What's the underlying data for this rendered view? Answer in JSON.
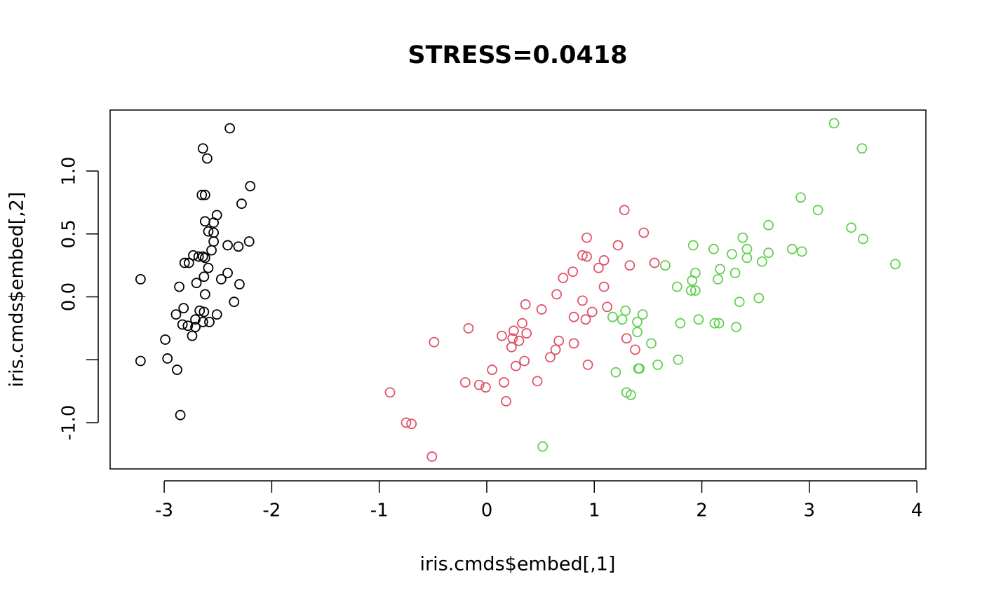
{
  "chart_data": {
    "type": "scatter",
    "title": "STRESS=0.0418",
    "xlabel": "iris.cmds$embed[,1]",
    "ylabel": "iris.cmds$embed[,2]",
    "xlim": [
      -3.503,
      4.084
    ],
    "ylim": [
      -1.368,
      1.485
    ],
    "xticks": [
      -3,
      -2,
      -1,
      0,
      1,
      2,
      3,
      4
    ],
    "yticks": [
      {
        "value": -1.0,
        "label": "-1.0"
      },
      {
        "value": -0.5,
        "label": null
      },
      {
        "value": 0.0,
        "label": "0.0"
      },
      {
        "value": 0.5,
        "label": "0.5"
      },
      {
        "value": 1.0,
        "label": "1.0"
      }
    ],
    "grid": false,
    "series": [
      {
        "color": "#000000",
        "x": [
          -2.39,
          -2.64,
          -2.6,
          -2.2,
          -2.65,
          -2.62,
          -2.28,
          -2.51,
          -2.62,
          -2.54,
          -2.59,
          -2.54,
          -2.54,
          -2.21,
          -2.41,
          -2.31,
          -2.56,
          -2.73,
          -2.68,
          -2.64,
          -2.62,
          -2.81,
          -2.77,
          -2.59,
          -2.41,
          -2.63,
          -3.22,
          -2.47,
          -2.7,
          -2.3,
          -2.86,
          -2.62,
          -2.35,
          -2.82,
          -2.67,
          -2.63,
          -2.89,
          -2.51,
          -2.71,
          -2.64,
          -2.58,
          -2.83,
          -2.78,
          -2.71,
          -2.74,
          -2.99,
          -2.97,
          -3.22,
          -2.88,
          -2.85
        ],
        "y": [
          1.34,
          1.18,
          1.1,
          0.88,
          0.81,
          0.81,
          0.74,
          0.65,
          0.6,
          0.59,
          0.52,
          0.51,
          0.44,
          0.44,
          0.41,
          0.4,
          0.37,
          0.33,
          0.32,
          0.32,
          0.31,
          0.27,
          0.27,
          0.23,
          0.19,
          0.16,
          0.14,
          0.14,
          0.11,
          0.1,
          0.08,
          0.02,
          -0.04,
          -0.09,
          -0.11,
          -0.12,
          -0.14,
          -0.14,
          -0.18,
          -0.2,
          -0.2,
          -0.22,
          -0.23,
          -0.24,
          -0.31,
          -0.34,
          -0.49,
          -0.51,
          -0.58,
          -0.94
        ]
      },
      {
        "color": "#DF536B",
        "x": [
          1.28,
          1.46,
          0.93,
          1.22,
          0.89,
          0.93,
          1.09,
          1.56,
          1.33,
          1.04,
          0.8,
          0.71,
          1.09,
          0.65,
          0.89,
          0.36,
          1.12,
          0.51,
          0.98,
          0.81,
          0.92,
          0.33,
          -0.17,
          0.25,
          0.37,
          0.14,
          0.24,
          0.3,
          0.67,
          -0.49,
          0.81,
          0.23,
          1.3,
          1.38,
          0.64,
          0.59,
          0.35,
          0.94,
          0.27,
          0.05,
          0.47,
          -0.2,
          0.16,
          -0.07,
          -0.01,
          -0.9,
          0.18,
          -0.75,
          -0.7,
          -0.51
        ],
        "y": [
          0.69,
          0.51,
          0.47,
          0.41,
          0.33,
          0.32,
          0.29,
          0.27,
          0.25,
          0.23,
          0.2,
          0.15,
          0.08,
          0.02,
          -0.03,
          -0.06,
          -0.08,
          -0.1,
          -0.12,
          -0.16,
          -0.18,
          -0.21,
          -0.25,
          -0.27,
          -0.29,
          -0.31,
          -0.33,
          -0.35,
          -0.35,
          -0.36,
          -0.37,
          -0.4,
          -0.33,
          -0.42,
          -0.42,
          -0.48,
          -0.51,
          -0.54,
          -0.55,
          -0.58,
          -0.67,
          -0.68,
          -0.68,
          -0.7,
          -0.72,
          -0.76,
          -0.83,
          -1.0,
          -1.01,
          -1.27
        ]
      },
      {
        "color": "#61D04F",
        "x": [
          3.23,
          3.49,
          2.92,
          3.08,
          2.62,
          3.39,
          2.38,
          3.5,
          1.92,
          2.11,
          2.42,
          2.84,
          2.93,
          2.28,
          2.62,
          2.42,
          2.56,
          3.8,
          1.66,
          2.17,
          1.94,
          2.31,
          2.15,
          1.91,
          1.77,
          1.9,
          1.94,
          2.53,
          2.35,
          1.29,
          1.45,
          1.17,
          1.26,
          1.97,
          1.4,
          2.12,
          2.16,
          1.8,
          2.32,
          1.4,
          1.53,
          1.78,
          1.59,
          1.41,
          1.42,
          1.2,
          1.3,
          1.34,
          0.52
        ],
        "y": [
          1.38,
          1.18,
          0.79,
          0.69,
          0.57,
          0.55,
          0.47,
          0.46,
          0.41,
          0.38,
          0.38,
          0.38,
          0.36,
          0.34,
          0.35,
          0.31,
          0.28,
          0.26,
          0.25,
          0.22,
          0.19,
          0.19,
          0.14,
          0.13,
          0.08,
          0.05,
          0.05,
          -0.01,
          -0.04,
          -0.11,
          -0.14,
          -0.16,
          -0.18,
          -0.18,
          -0.2,
          -0.21,
          -0.21,
          -0.21,
          -0.24,
          -0.28,
          -0.37,
          -0.5,
          -0.54,
          -0.57,
          -0.57,
          -0.6,
          -0.76,
          -0.78,
          -1.19
        ]
      }
    ]
  }
}
